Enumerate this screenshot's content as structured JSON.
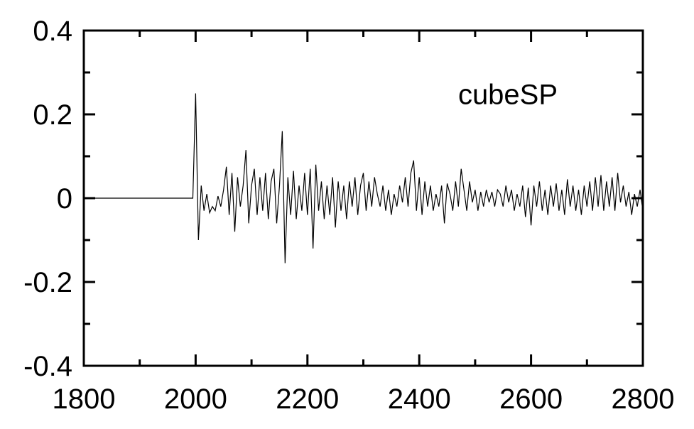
{
  "chart_data": {
    "type": "line",
    "annotation": "cubeSP",
    "xlim": [
      1800,
      2800
    ],
    "xticks": [
      1800,
      2000,
      2200,
      2400,
      2600,
      2800
    ],
    "xminorticks": [
      1900,
      2100,
      2300,
      2500,
      2700
    ],
    "ylim": [
      -0.4,
      0.4
    ],
    "yticks": [
      -0.4,
      -0.2,
      0,
      0.2,
      0.4
    ],
    "yminorticks": [
      -0.3,
      -0.1,
      0.1,
      0.3
    ],
    "grid": false,
    "series": [
      {
        "color": "#000000",
        "x": [
          1800,
          1995,
          2000,
          2005,
          2010,
          2015,
          2020,
          2025,
          2030,
          2035,
          2040,
          2045,
          2050,
          2055,
          2060,
          2065,
          2070,
          2075,
          2080,
          2085,
          2090,
          2095,
          2100,
          2105,
          2110,
          2115,
          2120,
          2125,
          2130,
          2135,
          2140,
          2145,
          2150,
          2155,
          2160,
          2165,
          2170,
          2175,
          2180,
          2185,
          2190,
          2195,
          2200,
          2205,
          2210,
          2215,
          2220,
          2225,
          2230,
          2235,
          2240,
          2245,
          2250,
          2255,
          2260,
          2265,
          2270,
          2275,
          2280,
          2285,
          2290,
          2295,
          2300,
          2305,
          2310,
          2315,
          2320,
          2325,
          2330,
          2335,
          2340,
          2345,
          2350,
          2355,
          2360,
          2365,
          2370,
          2375,
          2380,
          2385,
          2390,
          2395,
          2400,
          2405,
          2410,
          2415,
          2420,
          2425,
          2430,
          2435,
          2440,
          2445,
          2450,
          2455,
          2460,
          2465,
          2470,
          2475,
          2480,
          2485,
          2490,
          2495,
          2500,
          2505,
          2510,
          2515,
          2520,
          2525,
          2530,
          2535,
          2540,
          2545,
          2550,
          2555,
          2560,
          2565,
          2570,
          2575,
          2580,
          2585,
          2590,
          2595,
          2600,
          2605,
          2610,
          2615,
          2620,
          2625,
          2630,
          2635,
          2640,
          2645,
          2650,
          2655,
          2660,
          2665,
          2670,
          2675,
          2680,
          2685,
          2690,
          2695,
          2700,
          2705,
          2710,
          2715,
          2720,
          2725,
          2730,
          2735,
          2740,
          2745,
          2750,
          2755,
          2760,
          2765,
          2770,
          2775,
          2780,
          2785,
          2790,
          2795,
          2800
        ],
        "values": [
          0,
          0,
          0.25,
          -0.1,
          0.03,
          -0.03,
          0.01,
          -0.035,
          -0.02,
          -0.03,
          0.005,
          -0.02,
          0.02,
          0.075,
          -0.04,
          0.06,
          -0.08,
          0.05,
          -0.02,
          0.03,
          0.115,
          -0.06,
          0.03,
          0.07,
          -0.04,
          0.05,
          -0.03,
          0.06,
          -0.05,
          0.04,
          0.07,
          -0.06,
          0.03,
          0.16,
          -0.155,
          0.05,
          -0.04,
          0.065,
          -0.05,
          0.03,
          -0.03,
          0.06,
          -0.04,
          0.07,
          -0.12,
          0.08,
          -0.03,
          0.04,
          -0.05,
          0.03,
          -0.04,
          0.05,
          -0.07,
          0.04,
          -0.03,
          0.03,
          -0.05,
          0.04,
          -0.02,
          0.05,
          -0.04,
          0.03,
          0.06,
          -0.03,
          0.04,
          -0.02,
          0.05,
          0.01,
          -0.02,
          0.03,
          -0.03,
          0.02,
          -0.04,
          0.01,
          -0.02,
          0.03,
          -0.01,
          0.05,
          -0.02,
          0.06,
          0.09,
          -0.03,
          0.05,
          -0.04,
          0.04,
          -0.02,
          0.03,
          -0.03,
          0.01,
          -0.02,
          0.03,
          -0.06,
          0.035,
          0.01,
          -0.03,
          0.04,
          -0.02,
          0.07,
          0.02,
          -0.03,
          0.04,
          -0.01,
          0.02,
          -0.03,
          0.015,
          -0.02,
          0.02,
          -0.01,
          0.015,
          -0.02,
          0.02,
          0.01,
          -0.02,
          0.03,
          -0.01,
          0.02,
          -0.03,
          0.01,
          -0.02,
          0.03,
          -0.045,
          0.025,
          -0.065,
          0.03,
          -0.02,
          0.04,
          -0.03,
          0.02,
          -0.04,
          0.03,
          -0.02,
          0.035,
          -0.03,
          0.02,
          -0.04,
          0.045,
          -0.02,
          0.03,
          -0.03,
          0.02,
          -0.04,
          0.03,
          -0.02,
          0.04,
          -0.03,
          0.05,
          -0.02,
          0.055,
          -0.03,
          0.04,
          -0.02,
          0.05,
          -0.03,
          0.06,
          -0.01,
          0.03,
          -0.02,
          0.015,
          -0.04,
          0.01,
          -0.02,
          0.02,
          -0.03
        ]
      }
    ]
  }
}
